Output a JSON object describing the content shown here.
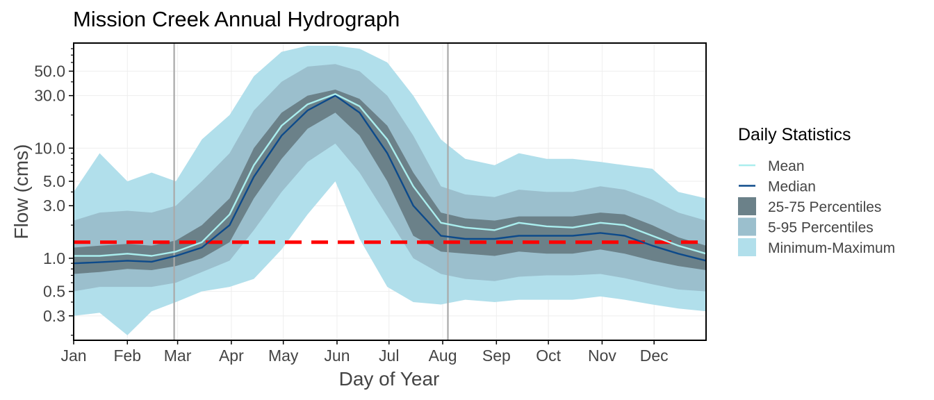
{
  "chart_data": {
    "type": "area",
    "title": "Mission Creek Annual Hydrograph",
    "xlabel": "Day of Year",
    "ylabel": "Flow (cms)",
    "y_scale": "log",
    "ylim": [
      0.18,
      90
    ],
    "xlim": [
      1,
      366
    ],
    "x_tick_labels": [
      "Jan",
      "Feb",
      "Mar",
      "Apr",
      "May",
      "Jun",
      "Jul",
      "Aug",
      "Sep",
      "Oct",
      "Nov",
      "Dec"
    ],
    "x_tick_days": [
      1,
      32,
      61,
      92,
      122,
      153,
      183,
      214,
      245,
      275,
      306,
      336
    ],
    "y_tick_labels": [
      "0.3",
      "0.5",
      "1.0",
      "3.0",
      "5.0",
      "10.0",
      "30.0",
      "50.0"
    ],
    "y_tick_values": [
      0.3,
      0.5,
      1,
      3,
      5,
      10,
      30,
      50
    ],
    "grid": true,
    "legend_position": "right",
    "legend_title": "Daily Statistics",
    "vertical_lines_day": [
      59,
      217
    ],
    "reference_line_value": 1.4,
    "x": [
      1,
      16,
      32,
      46,
      60,
      75,
      91,
      105,
      121,
      136,
      152,
      166,
      182,
      197,
      213,
      227,
      244,
      258,
      274,
      289,
      305,
      319,
      335,
      350,
      366
    ],
    "series": [
      {
        "name": "Mean",
        "color": "#aaeeee",
        "values": [
          1.05,
          1.05,
          1.1,
          1.05,
          1.15,
          1.4,
          2.5,
          7.0,
          16.0,
          25.0,
          31.0,
          24.0,
          12.0,
          4.5,
          2.1,
          1.9,
          1.8,
          2.1,
          1.95,
          1.9,
          2.1,
          2.0,
          1.6,
          1.3,
          1.1
        ]
      },
      {
        "name": "Median",
        "color": "#0d4a8a",
        "values": [
          0.9,
          0.92,
          0.95,
          0.93,
          1.05,
          1.25,
          2.0,
          5.5,
          13.0,
          22.0,
          30.0,
          21.0,
          9.0,
          3.0,
          1.6,
          1.5,
          1.5,
          1.6,
          1.6,
          1.6,
          1.7,
          1.6,
          1.3,
          1.1,
          0.95
        ]
      },
      {
        "name": "25-75 Percentiles",
        "color": "#6b8189",
        "lower": [
          0.72,
          0.75,
          0.8,
          0.78,
          0.85,
          1.0,
          1.4,
          3.5,
          8.0,
          15.0,
          21.0,
          13.0,
          5.0,
          1.6,
          1.15,
          1.1,
          1.05,
          1.15,
          1.1,
          1.1,
          1.2,
          1.1,
          0.95,
          0.85,
          0.78
        ],
        "upper": [
          1.25,
          1.3,
          1.35,
          1.3,
          1.45,
          2.0,
          3.5,
          10.0,
          21.0,
          30.0,
          34.0,
          28.0,
          16.0,
          6.0,
          2.6,
          2.3,
          2.2,
          2.4,
          2.4,
          2.4,
          2.6,
          2.5,
          2.0,
          1.55,
          1.3
        ]
      },
      {
        "name": "5-95 Percentiles",
        "color": "#9bbfcd",
        "lower": [
          0.5,
          0.55,
          0.55,
          0.55,
          0.6,
          0.75,
          0.95,
          1.8,
          4.0,
          7.5,
          11.0,
          6.0,
          2.4,
          1.0,
          0.72,
          0.65,
          0.62,
          0.68,
          0.7,
          0.7,
          0.72,
          0.66,
          0.58,
          0.52,
          0.5
        ],
        "upper": [
          2.2,
          2.6,
          2.7,
          2.6,
          3.0,
          5.0,
          9.0,
          22.0,
          40.0,
          55.0,
          58.0,
          50.0,
          30.0,
          13.0,
          4.5,
          3.8,
          3.6,
          4.2,
          4.0,
          4.0,
          4.5,
          4.2,
          3.4,
          2.6,
          2.2
        ]
      },
      {
        "name": "Minimum-Maximum",
        "color": "#b1dfeb",
        "lower": [
          0.3,
          0.32,
          0.2,
          0.33,
          0.4,
          0.5,
          0.55,
          0.65,
          1.2,
          2.5,
          5.0,
          1.5,
          0.55,
          0.4,
          0.38,
          0.42,
          0.4,
          0.42,
          0.42,
          0.42,
          0.45,
          0.42,
          0.38,
          0.35,
          0.33
        ],
        "upper": [
          4.0,
          9.0,
          5.0,
          6.0,
          5.0,
          12.0,
          20.0,
          45.0,
          75.0,
          85.0,
          85.0,
          80.0,
          60.0,
          30.0,
          12.0,
          8.0,
          7.0,
          9.0,
          8.0,
          8.0,
          7.5,
          7.0,
          6.5,
          4.0,
          3.5
        ]
      }
    ]
  }
}
